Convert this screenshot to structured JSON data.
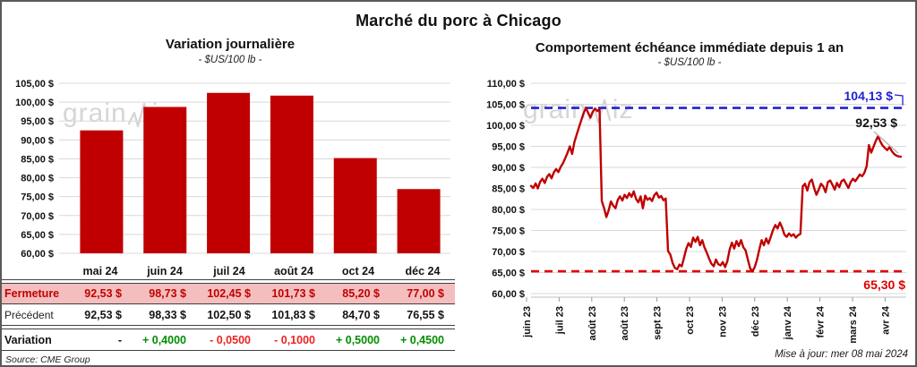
{
  "page": {
    "title": "Marché du porc à Chicago",
    "source_note": "Source: CME Group",
    "update_note": "Mise à jour: mer 08 mai 2024",
    "watermark": {
      "pre": "grain",
      "post": "iz"
    }
  },
  "table": {
    "months": [
      "mai 24",
      "juin 24",
      "juil 24",
      "août 24",
      "oct 24",
      "déc 24"
    ],
    "rows": [
      {
        "label": "Fermeture",
        "values": [
          "92,53 $",
          "98,73 $",
          "102,45 $",
          "101,73 $",
          "85,20 $",
          "77,00 $"
        ]
      },
      {
        "label": "Précédent",
        "values": [
          "92,53 $",
          "98,33 $",
          "102,50 $",
          "101,83 $",
          "84,70 $",
          "76,55 $"
        ]
      },
      {
        "label": "Variation",
        "values": [
          "-",
          "+ 0,4000",
          "- 0,0500",
          "- 0,1000",
          "+ 0,5000",
          "+ 0,4500"
        ]
      }
    ]
  },
  "chart_data": [
    {
      "type": "bar",
      "title": "Variation  journalière",
      "subtitle": "- $US/100 lb -",
      "categories": [
        "mai 24",
        "juin 24",
        "juil 24",
        "août 24",
        "oct 24",
        "déc 24"
      ],
      "values": [
        92.53,
        98.73,
        102.45,
        101.73,
        85.2,
        77.0
      ],
      "ylim": [
        60,
        105
      ],
      "ytick_step": 5,
      "yticks": [
        "105,00 $",
        "100,00 $",
        "95,00 $",
        "90,00 $",
        "85,00 $",
        "80,00 $",
        "75,00 $",
        "70,00 $",
        "65,00 $",
        "60,00 $"
      ],
      "bar_color": "#C00000",
      "grid_color": "#D9D9D9",
      "grid": true,
      "legend": "none"
    },
    {
      "type": "line",
      "title": "Comportement  échéance immédiate depuis 1 an",
      "subtitle": "- $US/100 lb -",
      "x_labels": [
        "juin 23",
        "juil 23",
        "août 23",
        "août 23",
        "sept 23",
        "oct 23",
        "nov 23",
        "déc 23",
        "janv 24",
        "févr 24",
        "mars 24",
        "avr 24"
      ],
      "ylim": [
        60,
        110
      ],
      "ytick_step": 5,
      "yticks": [
        "110,00 $",
        "105,00 $",
        "100,00 $",
        "95,00 $",
        "90,00 $",
        "85,00 $",
        "80,00 $",
        "75,00 $",
        "70,00 $",
        "65,00 $",
        "60,00 $"
      ],
      "line_color": "#C00000",
      "grid_color": "#D9D9D9",
      "grid": true,
      "legend": "none",
      "high_line": {
        "value": 104.13,
        "label": "104,13 $",
        "color": "#2121d2"
      },
      "low_line": {
        "value": 65.3,
        "label": "65,30 $",
        "color": "#e00000"
      },
      "last_value": 92.53,
      "last_value_label": "92,53 $",
      "values": [
        85.6,
        85.1,
        86.2,
        85.0,
        86.6,
        87.3,
        86.3,
        87.7,
        88.4,
        87.4,
        88.8,
        89.6,
        88.9,
        90.1,
        91.0,
        92.2,
        93.5,
        95.0,
        93.2,
        96.0,
        97.8,
        99.5,
        101.2,
        102.8,
        104.1,
        103.0,
        101.8,
        103.2,
        104.0,
        103.4,
        103.8,
        82.0,
        80.3,
        78.2,
        79.8,
        81.9,
        80.9,
        80.3,
        82.3,
        83.1,
        82.1,
        83.5,
        82.7,
        83.9,
        83.0,
        84.3,
        82.5,
        81.7,
        83.1,
        80.3,
        83.3,
        82.3,
        82.7,
        82.0,
        83.4,
        84.0,
        82.8,
        83.2,
        82.2,
        82.6,
        70.1,
        69.3,
        67.3,
        66.1,
        65.8,
        66.9,
        66.5,
        68.5,
        70.7,
        72.0,
        71.1,
        73.3,
        72.3,
        73.5,
        71.5,
        72.7,
        70.9,
        69.7,
        68.3,
        67.1,
        66.5,
        68.1,
        67.0,
        66.7,
        67.5,
        66.3,
        67.7,
        70.5,
        72.1,
        70.7,
        72.5,
        71.3,
        72.7,
        71.0,
        70.3,
        68.0,
        66.0,
        65.3,
        66.3,
        68.1,
        70.5,
        72.7,
        71.5,
        73.1,
        71.9,
        73.5,
        75.1,
        76.3,
        75.5,
        76.9,
        75.7,
        74.0,
        73.5,
        74.3,
        73.7,
        74.1,
        73.3,
        73.9,
        74.2,
        85.5,
        86.1,
        84.5,
        86.5,
        87.1,
        85.1,
        83.5,
        84.7,
        86.1,
        85.5,
        84.1,
        86.5,
        86.9,
        85.9,
        84.7,
        86.3,
        85.3,
        86.7,
        87.1,
        86.1,
        85.1,
        86.5,
        87.3,
        86.7,
        87.5,
        88.3,
        87.9,
        88.7,
        90.3,
        95.3,
        93.5,
        94.9,
        96.3,
        97.4,
        96.1,
        95.2,
        94.6,
        94.1,
        94.8,
        93.9,
        93.2,
        92.8,
        92.6,
        92.53
      ]
    }
  ]
}
